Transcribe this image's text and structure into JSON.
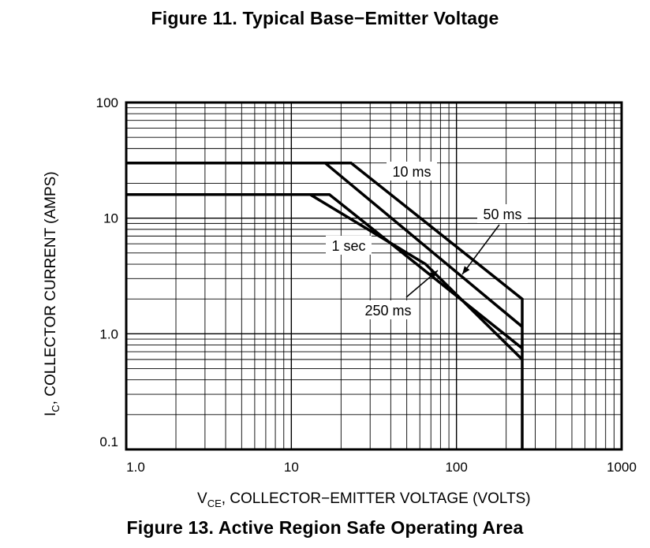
{
  "figure_11_title": "Figure 11. Typical Base−Emitter Voltage",
  "figure_13_title": "Figure 13. Active Region Safe Operating Area",
  "chart_data": {
    "type": "line",
    "xscale": "log",
    "yscale": "log",
    "xlim": [
      1,
      1000
    ],
    "ylim": [
      0.1,
      100
    ],
    "x_ticks": [
      "1.0",
      "10",
      "100",
      "1000"
    ],
    "y_ticks": [
      "0.1",
      "1.0",
      "10",
      "100"
    ],
    "xlabel_main": "V",
    "xlabel_sub": "CE",
    "xlabel_rest": ", COLLECTOR−EMITTER VOLTAGE (VOLTS)",
    "ylabel_main": "I",
    "ylabel_sub": "C",
    "ylabel_rest": ", COLLECTOR CURRENT (AMPS)",
    "grid": true,
    "series": [
      {
        "name": "10 ms",
        "points": [
          [
            1,
            30
          ],
          [
            23,
            30
          ],
          [
            250,
            2.0
          ],
          [
            250,
            0.1
          ]
        ]
      },
      {
        "name": "50 ms",
        "points": [
          [
            1,
            30
          ],
          [
            16,
            30
          ],
          [
            250,
            1.15
          ]
        ]
      },
      {
        "name": "250 ms",
        "points": [
          [
            1,
            16
          ],
          [
            17,
            16
          ],
          [
            250,
            0.75
          ]
        ]
      },
      {
        "name": "1 sec",
        "points": [
          [
            1,
            16
          ],
          [
            13,
            16
          ],
          [
            65,
            4.0
          ],
          [
            250,
            0.6
          ]
        ]
      }
    ],
    "annotations": [
      {
        "text": "10 ms"
      },
      {
        "text": "50 ms"
      },
      {
        "text": "1 sec"
      },
      {
        "text": "250 ms"
      }
    ]
  }
}
